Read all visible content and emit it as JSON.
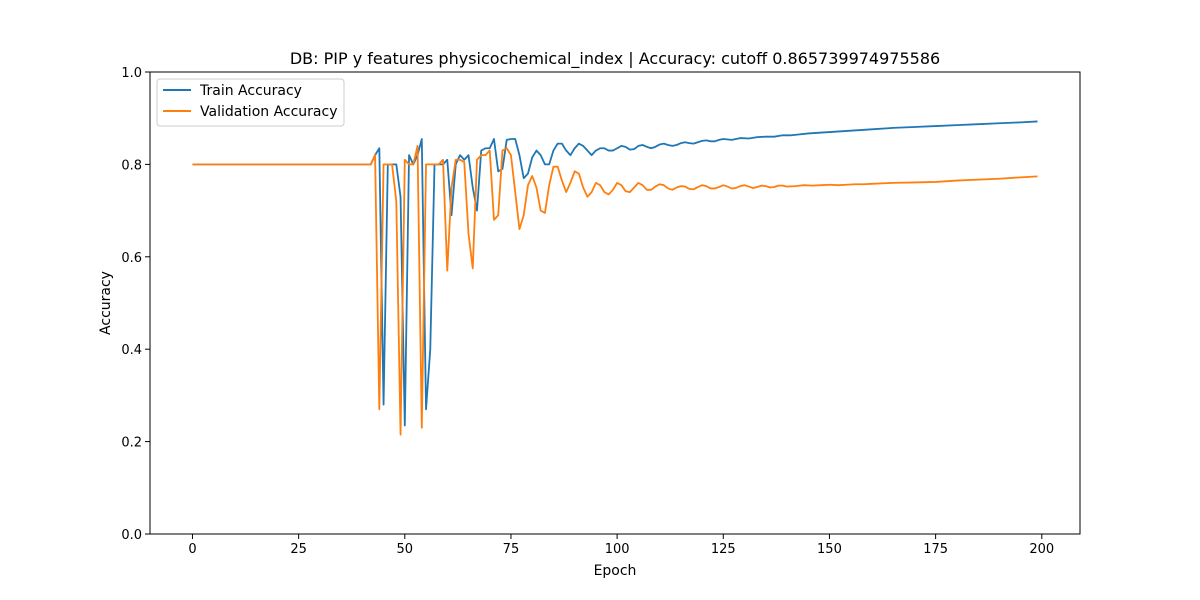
{
  "chart_data": {
    "type": "line",
    "title": "DB: PIP y features physicochemical_index | Accuracy: cutoff 0.865739974975586",
    "xlabel": "Epoch",
    "ylabel": "Accuracy",
    "xlim": [
      -10,
      209
    ],
    "ylim": [
      0.0,
      1.0
    ],
    "xticks": [
      0,
      25,
      50,
      75,
      100,
      125,
      150,
      175,
      200
    ],
    "yticks": [
      0.0,
      0.2,
      0.4,
      0.6,
      0.8,
      1.0
    ],
    "xtick_labels": [
      "0",
      "25",
      "50",
      "75",
      "100",
      "125",
      "150",
      "175",
      "200"
    ],
    "ytick_labels": [
      "0.0",
      "0.2",
      "0.4",
      "0.6",
      "0.8",
      "1.0"
    ],
    "grid": false,
    "legend_position": "top-left",
    "series": [
      {
        "name": "Train Accuracy",
        "color": "#1f77b4",
        "points": [
          [
            0,
            0.8
          ],
          [
            42,
            0.8
          ],
          [
            43,
            0.82
          ],
          [
            44,
            0.835
          ],
          [
            45,
            0.28
          ],
          [
            46,
            0.8
          ],
          [
            47,
            0.8
          ],
          [
            48,
            0.8
          ],
          [
            49,
            0.73
          ],
          [
            50,
            0.235
          ],
          [
            51,
            0.82
          ],
          [
            52,
            0.8
          ],
          [
            53,
            0.82
          ],
          [
            54,
            0.855
          ],
          [
            55,
            0.27
          ],
          [
            56,
            0.4
          ],
          [
            57,
            0.8
          ],
          [
            58,
            0.8
          ],
          [
            59,
            0.8
          ],
          [
            60,
            0.81
          ],
          [
            61,
            0.69
          ],
          [
            62,
            0.8
          ],
          [
            63,
            0.82
          ],
          [
            64,
            0.81
          ],
          [
            65,
            0.82
          ],
          [
            66,
            0.75
          ],
          [
            67,
            0.7
          ],
          [
            68,
            0.83
          ],
          [
            69,
            0.835
          ],
          [
            70,
            0.835
          ],
          [
            71,
            0.855
          ],
          [
            72,
            0.785
          ],
          [
            73,
            0.79
          ],
          [
            74,
            0.853
          ],
          [
            75,
            0.855
          ],
          [
            76,
            0.855
          ],
          [
            77,
            0.82
          ],
          [
            78,
            0.77
          ],
          [
            79,
            0.78
          ],
          [
            80,
            0.815
          ],
          [
            81,
            0.83
          ],
          [
            82,
            0.82
          ],
          [
            83,
            0.8
          ],
          [
            84,
            0.8
          ],
          [
            85,
            0.83
          ],
          [
            86,
            0.845
          ],
          [
            87,
            0.845
          ],
          [
            88,
            0.83
          ],
          [
            89,
            0.82
          ],
          [
            90,
            0.835
          ],
          [
            91,
            0.845
          ],
          [
            92,
            0.84
          ],
          [
            93,
            0.83
          ],
          [
            94,
            0.82
          ],
          [
            95,
            0.83
          ],
          [
            96,
            0.835
          ],
          [
            97,
            0.835
          ],
          [
            98,
            0.83
          ],
          [
            99,
            0.83
          ],
          [
            100,
            0.835
          ],
          [
            101,
            0.84
          ],
          [
            102,
            0.838
          ],
          [
            103,
            0.832
          ],
          [
            104,
            0.833
          ],
          [
            105,
            0.84
          ],
          [
            106,
            0.842
          ],
          [
            107,
            0.838
          ],
          [
            108,
            0.835
          ],
          [
            109,
            0.838
          ],
          [
            110,
            0.843
          ],
          [
            111,
            0.845
          ],
          [
            112,
            0.842
          ],
          [
            113,
            0.84
          ],
          [
            114,
            0.842
          ],
          [
            115,
            0.846
          ],
          [
            116,
            0.848
          ],
          [
            117,
            0.846
          ],
          [
            118,
            0.845
          ],
          [
            119,
            0.848
          ],
          [
            120,
            0.851
          ],
          [
            121,
            0.852
          ],
          [
            122,
            0.85
          ],
          [
            123,
            0.85
          ],
          [
            124,
            0.853
          ],
          [
            125,
            0.855
          ],
          [
            127,
            0.853
          ],
          [
            129,
            0.857
          ],
          [
            131,
            0.856
          ],
          [
            133,
            0.859
          ],
          [
            135,
            0.86
          ],
          [
            137,
            0.86
          ],
          [
            139,
            0.863
          ],
          [
            141,
            0.863
          ],
          [
            143,
            0.865
          ],
          [
            145,
            0.867
          ],
          [
            150,
            0.87
          ],
          [
            155,
            0.873
          ],
          [
            160,
            0.876
          ],
          [
            165,
            0.879
          ],
          [
            170,
            0.881
          ],
          [
            175,
            0.883
          ],
          [
            180,
            0.885
          ],
          [
            185,
            0.887
          ],
          [
            190,
            0.889
          ],
          [
            195,
            0.891
          ],
          [
            199,
            0.893
          ]
        ]
      },
      {
        "name": "Validation Accuracy",
        "color": "#ff7f0e",
        "points": [
          [
            0,
            0.8
          ],
          [
            42,
            0.8
          ],
          [
            43,
            0.82
          ],
          [
            44,
            0.27
          ],
          [
            45,
            0.8
          ],
          [
            46,
            0.8
          ],
          [
            47,
            0.8
          ],
          [
            48,
            0.72
          ],
          [
            49,
            0.215
          ],
          [
            50,
            0.81
          ],
          [
            51,
            0.8
          ],
          [
            52,
            0.8
          ],
          [
            53,
            0.84
          ],
          [
            54,
            0.23
          ],
          [
            55,
            0.8
          ],
          [
            56,
            0.8
          ],
          [
            57,
            0.8
          ],
          [
            58,
            0.8
          ],
          [
            59,
            0.81
          ],
          [
            60,
            0.57
          ],
          [
            61,
            0.75
          ],
          [
            62,
            0.81
          ],
          [
            63,
            0.81
          ],
          [
            64,
            0.805
          ],
          [
            65,
            0.65
          ],
          [
            66,
            0.575
          ],
          [
            67,
            0.81
          ],
          [
            68,
            0.82
          ],
          [
            69,
            0.82
          ],
          [
            70,
            0.83
          ],
          [
            71,
            0.68
          ],
          [
            72,
            0.69
          ],
          [
            73,
            0.83
          ],
          [
            74,
            0.835
          ],
          [
            75,
            0.82
          ],
          [
            76,
            0.74
          ],
          [
            77,
            0.66
          ],
          [
            78,
            0.69
          ],
          [
            79,
            0.755
          ],
          [
            80,
            0.775
          ],
          [
            81,
            0.75
          ],
          [
            82,
            0.7
          ],
          [
            83,
            0.695
          ],
          [
            84,
            0.755
          ],
          [
            85,
            0.795
          ],
          [
            86,
            0.795
          ],
          [
            87,
            0.765
          ],
          [
            88,
            0.74
          ],
          [
            89,
            0.76
          ],
          [
            90,
            0.785
          ],
          [
            91,
            0.78
          ],
          [
            92,
            0.75
          ],
          [
            93,
            0.73
          ],
          [
            94,
            0.74
          ],
          [
            95,
            0.76
          ],
          [
            96,
            0.755
          ],
          [
            97,
            0.74
          ],
          [
            98,
            0.735
          ],
          [
            99,
            0.745
          ],
          [
            100,
            0.76
          ],
          [
            101,
            0.755
          ],
          [
            102,
            0.742
          ],
          [
            103,
            0.74
          ],
          [
            104,
            0.75
          ],
          [
            105,
            0.76
          ],
          [
            106,
            0.755
          ],
          [
            107,
            0.745
          ],
          [
            108,
            0.745
          ],
          [
            109,
            0.752
          ],
          [
            110,
            0.757
          ],
          [
            111,
            0.755
          ],
          [
            112,
            0.748
          ],
          [
            113,
            0.745
          ],
          [
            114,
            0.75
          ],
          [
            115,
            0.753
          ],
          [
            116,
            0.752
          ],
          [
            117,
            0.747
          ],
          [
            118,
            0.746
          ],
          [
            119,
            0.751
          ],
          [
            120,
            0.755
          ],
          [
            121,
            0.753
          ],
          [
            122,
            0.748
          ],
          [
            123,
            0.748
          ],
          [
            124,
            0.751
          ],
          [
            125,
            0.755
          ],
          [
            126,
            0.752
          ],
          [
            127,
            0.748
          ],
          [
            128,
            0.749
          ],
          [
            129,
            0.753
          ],
          [
            130,
            0.755
          ],
          [
            131,
            0.752
          ],
          [
            132,
            0.749
          ],
          [
            133,
            0.751
          ],
          [
            134,
            0.754
          ],
          [
            135,
            0.753
          ],
          [
            136,
            0.75
          ],
          [
            137,
            0.751
          ],
          [
            138,
            0.754
          ],
          [
            139,
            0.754
          ],
          [
            140,
            0.752
          ],
          [
            142,
            0.753
          ],
          [
            144,
            0.755
          ],
          [
            146,
            0.754
          ],
          [
            148,
            0.755
          ],
          [
            150,
            0.756
          ],
          [
            152,
            0.755
          ],
          [
            154,
            0.756
          ],
          [
            156,
            0.757
          ],
          [
            158,
            0.757
          ],
          [
            160,
            0.758
          ],
          [
            165,
            0.76
          ],
          [
            170,
            0.761
          ],
          [
            175,
            0.762
          ],
          [
            180,
            0.765
          ],
          [
            185,
            0.767
          ],
          [
            190,
            0.769
          ],
          [
            195,
            0.772
          ],
          [
            199,
            0.774
          ]
        ]
      }
    ]
  }
}
